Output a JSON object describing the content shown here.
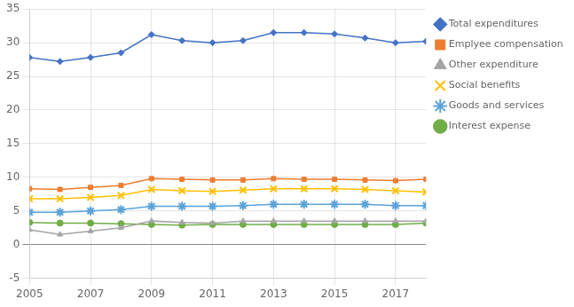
{
  "chart_data": {
    "type": "line",
    "x": [
      2005,
      2006,
      2007,
      2008,
      2009,
      2010,
      2011,
      2012,
      2013,
      2014,
      2015,
      2016,
      2017,
      2018
    ],
    "series": [
      {
        "name": "Total expenditures",
        "color": "#4472C4",
        "marker": "diamond",
        "values": [
          27.8,
          27.2,
          27.8,
          28.5,
          31.2,
          30.3,
          30.0,
          30.3,
          31.5,
          31.5,
          31.3,
          30.7,
          30.0,
          30.2
        ]
      },
      {
        "name": "Emplyee compensation",
        "color": "#ED7D31",
        "marker": "square",
        "values": [
          8.3,
          8.2,
          8.5,
          8.8,
          9.8,
          9.7,
          9.6,
          9.6,
          9.8,
          9.7,
          9.7,
          9.6,
          9.5,
          9.7
        ]
      },
      {
        "name": "Other expenditure",
        "color": "#A5A5A5",
        "marker": "triangle",
        "values": [
          2.2,
          1.5,
          2.0,
          2.5,
          3.5,
          3.3,
          3.2,
          3.5,
          3.5,
          3.5,
          3.5,
          3.5,
          3.5,
          3.5
        ]
      },
      {
        "name": "Social benefits",
        "color": "#FFC000",
        "marker": "x",
        "values": [
          6.8,
          6.8,
          7.0,
          7.3,
          8.2,
          8.0,
          7.9,
          8.1,
          8.3,
          8.3,
          8.3,
          8.2,
          8.0,
          7.8
        ]
      },
      {
        "name": "Goods and services",
        "color": "#5BA3D9",
        "marker": "star",
        "values": [
          4.8,
          4.8,
          5.0,
          5.2,
          5.7,
          5.7,
          5.7,
          5.8,
          6.0,
          6.0,
          6.0,
          6.0,
          5.8,
          5.8
        ]
      },
      {
        "name": "Interest expense",
        "color": "#70AD47",
        "marker": "circle",
        "values": [
          3.3,
          3.2,
          3.2,
          3.1,
          3.0,
          2.9,
          3.0,
          3.0,
          3.0,
          3.0,
          3.0,
          3.0,
          3.0,
          3.2
        ]
      }
    ],
    "xlim": [
      2005,
      2018
    ],
    "xticks": [
      2005,
      2007,
      2009,
      2011,
      2013,
      2015,
      2017
    ],
    "ylim": [
      -5,
      35
    ],
    "yticks": [
      -5,
      0,
      5,
      10,
      15,
      20,
      25,
      30,
      35
    ],
    "grid": true,
    "legend": "right"
  }
}
